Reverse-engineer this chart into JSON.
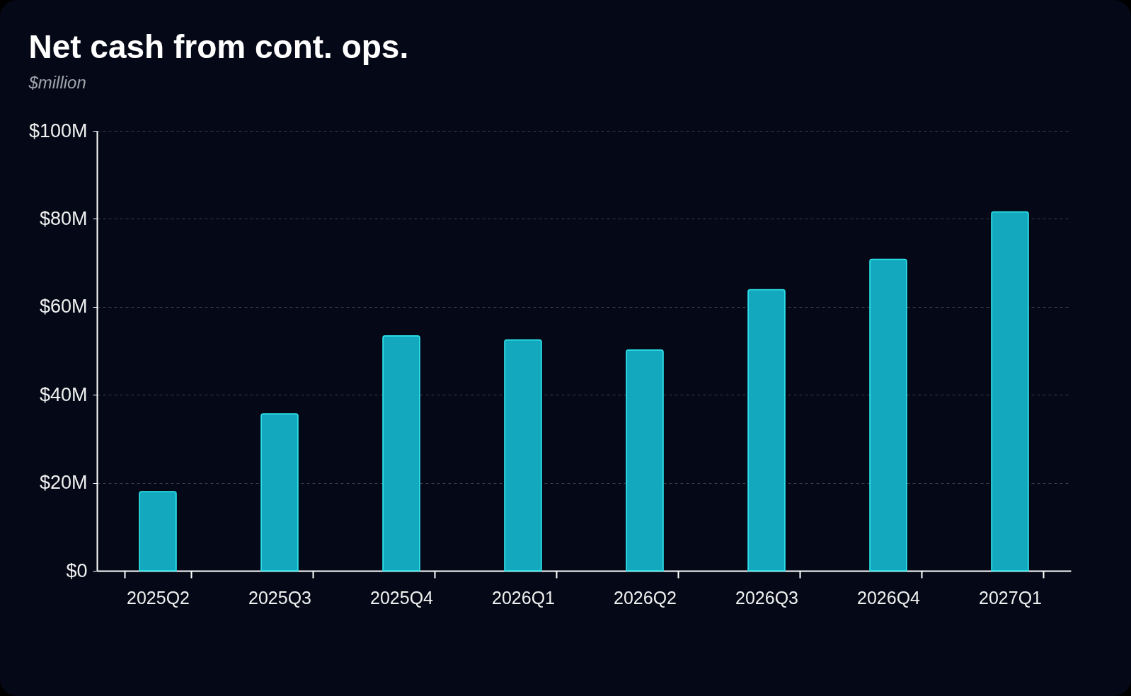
{
  "chart_data": {
    "type": "bar",
    "title": "Net cash from cont. ops.",
    "subtitle": "$million",
    "categories": [
      "2025Q2",
      "2025Q3",
      "2025Q4",
      "2026Q1",
      "2026Q2",
      "2026Q3",
      "2026Q4",
      "2027Q1"
    ],
    "values": [
      18,
      35.7,
      53.4,
      52.5,
      50.2,
      63.9,
      70.8,
      81.6
    ],
    "color": "#13a8bd",
    "ylim": [
      0,
      100
    ],
    "yticks": [
      {
        "value": 0,
        "label": "$0"
      },
      {
        "value": 20,
        "label": "$20M"
      },
      {
        "value": 40,
        "label": "$40M"
      },
      {
        "value": 60,
        "label": "$60M"
      },
      {
        "value": 80,
        "label": "$80M"
      },
      {
        "value": 100,
        "label": "$100M"
      }
    ],
    "grid": "y"
  }
}
